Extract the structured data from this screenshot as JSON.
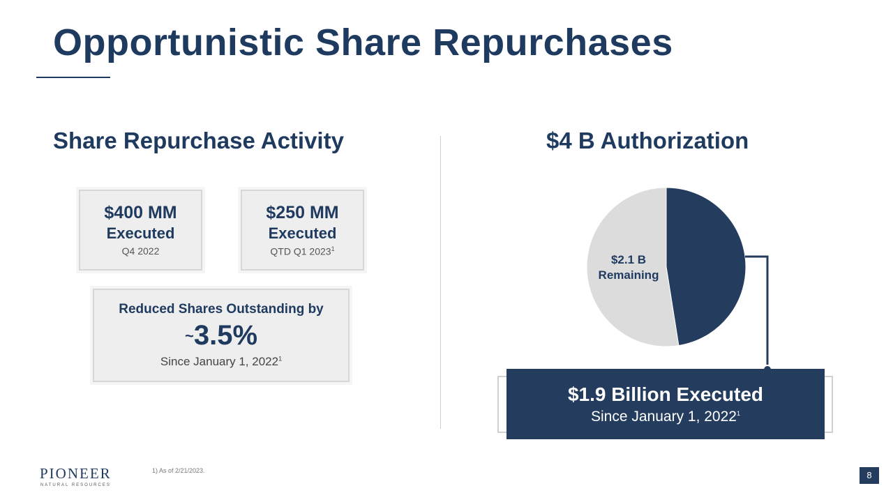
{
  "slide": {
    "title": "Opportunistic Share Repurchases",
    "page_number": "8",
    "footnote": "1)  As of 2/21/2023.",
    "logo": {
      "name": "PIONEER",
      "subtitle": "NATURAL RESOURCES"
    }
  },
  "left": {
    "heading": "Share Repurchase Activity",
    "cards": [
      {
        "amount": "$400 MM",
        "label": "Executed",
        "period": "Q4 2022",
        "footnote_mark": ""
      },
      {
        "amount": "$250 MM",
        "label": "Executed",
        "period": "QTD Q1 2023",
        "footnote_mark": "1"
      }
    ],
    "reduction": {
      "heading": "Reduced Shares Outstanding by",
      "approx": "~",
      "value": "3.5%",
      "since": "Since January 1, 2022",
      "footnote_mark": "1"
    }
  },
  "right": {
    "heading": "$4 B Authorization",
    "executed_box": {
      "title": "$1.9 Billion Executed",
      "since": "Since January 1, 2022",
      "footnote_mark": "1"
    }
  },
  "chart_data": {
    "type": "pie",
    "title": "$4 B Authorization",
    "slices": [
      {
        "label": "$1.9 Billion Executed",
        "value": 1.9,
        "color": "#243d5e"
      },
      {
        "label": "$2.1 B Remaining",
        "value": 2.1,
        "color": "#dcdcdc"
      }
    ],
    "start_angle_deg": 0,
    "direction": "clockwise",
    "slice_labels": {
      "remaining_value": "$2.1 B",
      "remaining_word": "Remaining"
    }
  }
}
